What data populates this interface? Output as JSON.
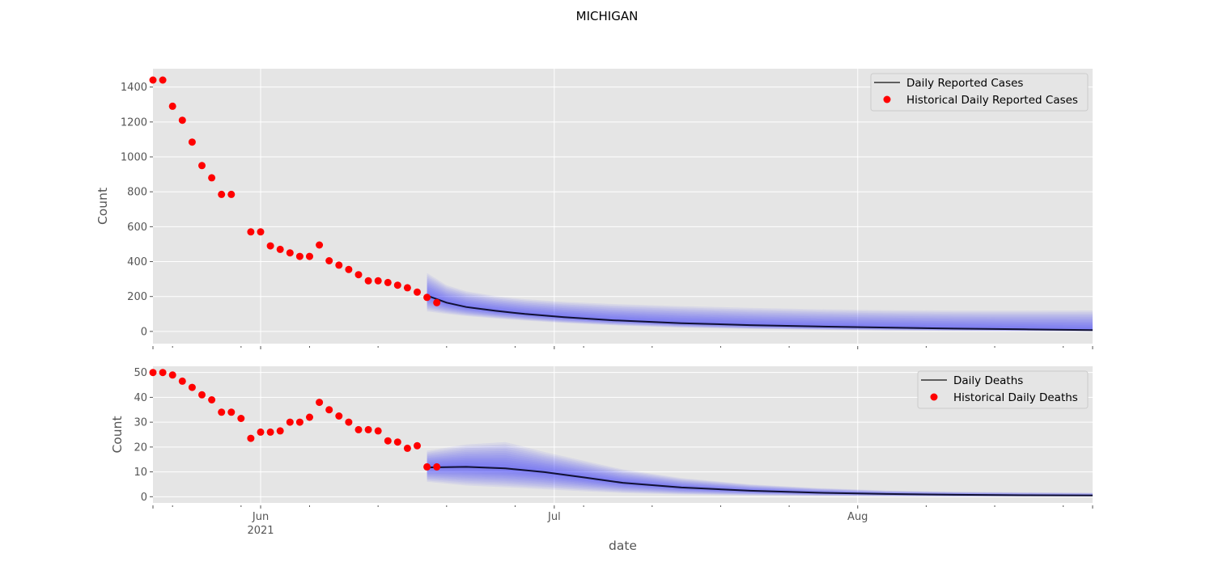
{
  "page": {
    "title": "MICHIGAN"
  },
  "colors": {
    "panel_bg": "#e5e5e5",
    "grid": "#ffffff",
    "observed": "#ff0000",
    "median_line": "#111133",
    "band": "#3333ff"
  },
  "x_axis": {
    "label": "date",
    "range": [
      "2021-05-21",
      "2021-08-25"
    ],
    "major_ticks": [
      {
        "date": "2021-06-01",
        "label": "Jun",
        "sublabel": "2021"
      },
      {
        "date": "2021-07-01",
        "label": "Jul",
        "sublabel": ""
      },
      {
        "date": "2021-08-01",
        "label": "Aug",
        "sublabel": ""
      }
    ],
    "minor_ticks": [
      "2021-05-23",
      "2021-05-30",
      "2021-06-06",
      "2021-06-13",
      "2021-06-20",
      "2021-06-27",
      "2021-07-04",
      "2021-07-11",
      "2021-07-18",
      "2021-07-25",
      "2021-08-08",
      "2021-08-15",
      "2021-08-22"
    ]
  },
  "chart_data": [
    {
      "type": "line",
      "ylabel": "Count",
      "ylim": [
        -70,
        1505
      ],
      "yticks": [
        0,
        200,
        400,
        600,
        800,
        1000,
        1200,
        1400
      ],
      "grid": true,
      "legend_position": "top-right",
      "series": [
        {
          "name": "Daily Reported Cases",
          "style": "line",
          "x": [
            "2021-06-18",
            "2021-06-20",
            "2021-06-22",
            "2021-06-25",
            "2021-06-28",
            "2021-07-02",
            "2021-07-07",
            "2021-07-14",
            "2021-07-21",
            "2021-07-28",
            "2021-08-04",
            "2021-08-11",
            "2021-08-18",
            "2021-08-25"
          ],
          "y": [
            205,
            165,
            140,
            118,
            100,
            82,
            64,
            47,
            36,
            28,
            22,
            16,
            12,
            8
          ],
          "band_low": [
            115,
            100,
            88,
            74,
            62,
            48,
            35,
            22,
            14,
            9,
            5,
            3,
            2,
            1
          ],
          "band_high": [
            335,
            265,
            230,
            202,
            185,
            170,
            157,
            145,
            135,
            127,
            122,
            119,
            119,
            120
          ]
        },
        {
          "name": "Historical Daily Reported Cases",
          "style": "scatter",
          "x": [
            "2021-05-21",
            "2021-05-22",
            "2021-05-23",
            "2021-05-24",
            "2021-05-25",
            "2021-05-26",
            "2021-05-27",
            "2021-05-28",
            "2021-05-29",
            "2021-05-31",
            "2021-06-01",
            "2021-06-02",
            "2021-06-03",
            "2021-06-04",
            "2021-06-05",
            "2021-06-06",
            "2021-06-07",
            "2021-06-08",
            "2021-06-09",
            "2021-06-10",
            "2021-06-11",
            "2021-06-12",
            "2021-06-13",
            "2021-06-14",
            "2021-06-15",
            "2021-06-16",
            "2021-06-17",
            "2021-06-18",
            "2021-06-19"
          ],
          "y": [
            1440,
            1440,
            1290,
            1210,
            1085,
            950,
            880,
            785,
            785,
            570,
            570,
            490,
            470,
            450,
            430,
            430,
            495,
            405,
            380,
            355,
            325,
            290,
            290,
            280,
            265,
            250,
            225,
            195,
            165
          ]
        }
      ]
    },
    {
      "type": "line",
      "ylabel": "Count",
      "xlabel": "date",
      "ylim": [
        -2.5,
        52.5
      ],
      "yticks": [
        0,
        10,
        20,
        30,
        40,
        50
      ],
      "grid": true,
      "legend_position": "top-right",
      "series": [
        {
          "name": "Daily Deaths",
          "style": "line",
          "x": [
            "2021-06-18",
            "2021-06-22",
            "2021-06-26",
            "2021-06-30",
            "2021-07-04",
            "2021-07-08",
            "2021-07-14",
            "2021-07-21",
            "2021-07-28",
            "2021-08-04",
            "2021-08-11",
            "2021-08-18",
            "2021-08-25"
          ],
          "y": [
            11.8,
            12.0,
            11.4,
            9.9,
            7.8,
            5.6,
            3.7,
            2.4,
            1.6,
            1.1,
            0.8,
            0.6,
            0.5
          ],
          "band_low": [
            6.0,
            4.5,
            3.8,
            3.0,
            2.2,
            1.5,
            0.9,
            0.5,
            0.3,
            0.2,
            0.1,
            0.1,
            0.1
          ],
          "band_high": [
            18.5,
            21.0,
            22.0,
            18.0,
            14.5,
            11.0,
            7.5,
            5.0,
            3.5,
            2.5,
            2.0,
            1.8,
            1.6
          ]
        },
        {
          "name": "Historical Daily Deaths",
          "style": "scatter",
          "x": [
            "2021-05-21",
            "2021-05-22",
            "2021-05-23",
            "2021-05-24",
            "2021-05-25",
            "2021-05-26",
            "2021-05-27",
            "2021-05-28",
            "2021-05-29",
            "2021-05-30",
            "2021-05-31",
            "2021-06-01",
            "2021-06-02",
            "2021-06-03",
            "2021-06-04",
            "2021-06-05",
            "2021-06-06",
            "2021-06-07",
            "2021-06-08",
            "2021-06-09",
            "2021-06-10",
            "2021-06-11",
            "2021-06-12",
            "2021-06-13",
            "2021-06-14",
            "2021-06-15",
            "2021-06-16",
            "2021-06-17",
            "2021-06-18",
            "2021-06-19"
          ],
          "y": [
            50,
            50,
            49,
            46.5,
            44,
            41,
            39,
            34,
            34,
            31.5,
            23.5,
            26,
            26,
            26.5,
            30,
            30,
            32,
            38,
            35,
            32.5,
            30,
            27,
            27,
            26.5,
            22.5,
            22,
            19.5,
            20.5,
            12,
            12
          ]
        }
      ]
    }
  ]
}
